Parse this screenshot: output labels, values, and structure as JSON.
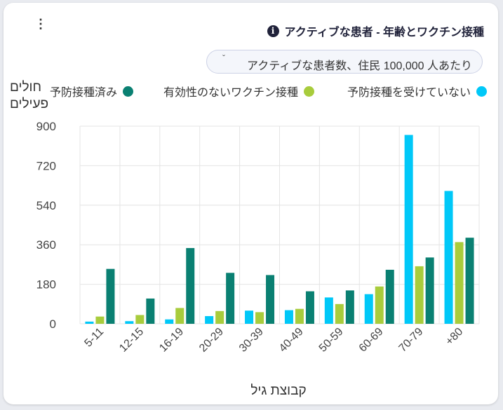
{
  "card": {
    "menu_glyph": "⋮",
    "title": "アクティブな患者 - 年齢とワクチン接種",
    "info_glyph": "i",
    "selector": {
      "chevron": "ˇ",
      "value": "アクティブな患者数、住民 100,000 人あたり"
    }
  },
  "colors": {
    "unvaccinated": "#00c8f8",
    "ineffective": "#a8cc3c",
    "vaccinated": "#0a8072"
  },
  "chart_data": {
    "type": "bar",
    "title": "アクティブな患者 - 年齢とワクチン接種",
    "xlabel": "קבוצת גיל",
    "ylabel_lines": [
      "חולים",
      "פעילים"
    ],
    "categories": [
      "5-11",
      "12-15",
      "16-19",
      "20-29",
      "30-39",
      "40-49",
      "50-59",
      "60-69",
      "70-79",
      "+80"
    ],
    "ylim": [
      0,
      900
    ],
    "yticks": [
      0,
      180,
      360,
      540,
      720,
      900
    ],
    "grid": true,
    "legend_position": "top",
    "series": [
      {
        "name": "予防接種を受けていない",
        "color": "#00c8f8",
        "values": [
          10,
          12,
          20,
          35,
          60,
          62,
          120,
          135,
          860,
          605
        ]
      },
      {
        "name": "有効性のないワクチン接種",
        "color": "#a8cc3c",
        "values": [
          33,
          40,
          72,
          58,
          53,
          68,
          90,
          170,
          262,
          372
        ]
      },
      {
        "name": "予防接種済み",
        "color": "#0a8072",
        "values": [
          250,
          115,
          345,
          232,
          222,
          148,
          152,
          246,
          302,
          392
        ]
      }
    ]
  }
}
